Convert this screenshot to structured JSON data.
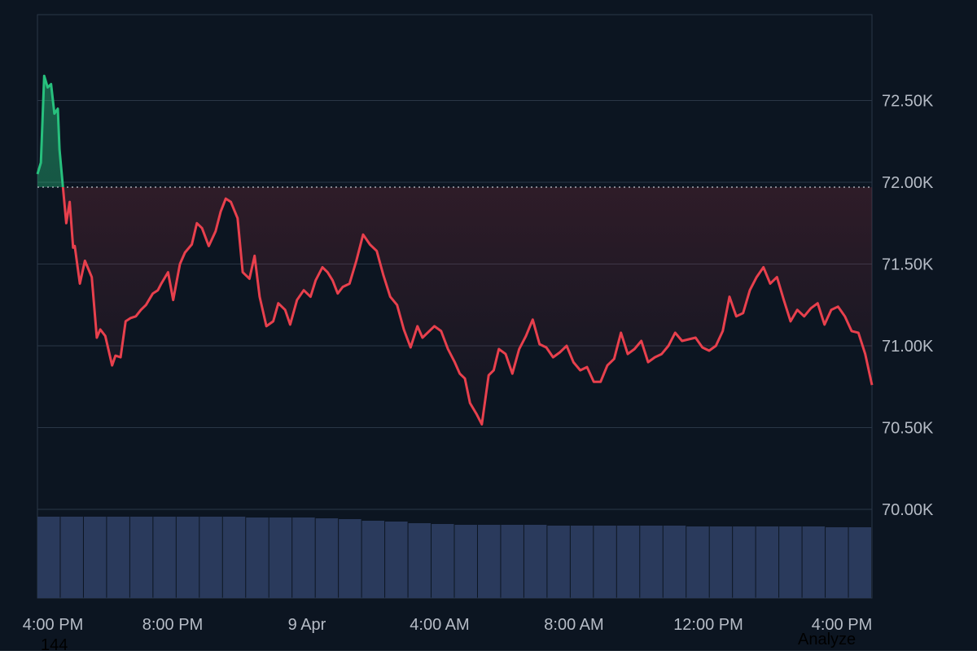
{
  "chart_data": {
    "type": "area",
    "title": "",
    "xlabel": "",
    "ylabel": "",
    "x_ticks": [
      "4:00 PM",
      "8:00 PM",
      "9 Apr",
      "4:00 AM",
      "8:00 AM",
      "12:00 PM",
      "4:00 PM"
    ],
    "y_ticks": [
      "72.50K",
      "72.00K",
      "71.50K",
      "71.00K",
      "70.50K",
      "70.00K"
    ],
    "y_tick_values": [
      72500,
      72000,
      71500,
      71000,
      70500,
      70000
    ],
    "ylim": [
      69500,
      73000
    ],
    "baseline": 71970,
    "x_range_hours": [
      0,
      24.6
    ],
    "grid": true,
    "series": [
      {
        "x": [
          0,
          0.1,
          0.2,
          0.3,
          0.4,
          0.5,
          0.6,
          0.65,
          0.75,
          0.85,
          0.95,
          1.05,
          1.1,
          1.25,
          1.4,
          1.6,
          1.75,
          1.85,
          2.0,
          2.2,
          2.3,
          2.45,
          2.6,
          2.75,
          2.9,
          3.05,
          3.2,
          3.4,
          3.55,
          3.65,
          3.85,
          4.0,
          4.2,
          4.35,
          4.55,
          4.7,
          4.85,
          5.05,
          5.25,
          5.4,
          5.55,
          5.7,
          5.9,
          6.05,
          6.25,
          6.4,
          6.55,
          6.75,
          6.95,
          7.1,
          7.3,
          7.45,
          7.65,
          7.85,
          8.05,
          8.2,
          8.4,
          8.55,
          8.7,
          8.85,
          9.0,
          9.2,
          9.4,
          9.6,
          9.8,
          10.0,
          10.2,
          10.4,
          10.6,
          10.8,
          11.0,
          11.2,
          11.35,
          11.5,
          11.7,
          11.9,
          12.1,
          12.3,
          12.45,
          12.6,
          12.75,
          12.95,
          13.1,
          13.3,
          13.45,
          13.6,
          13.8,
          14.0,
          14.2,
          14.4,
          14.6,
          14.8,
          15.0,
          15.2,
          15.4,
          15.6,
          15.8,
          16.0,
          16.2,
          16.4,
          16.6,
          16.8,
          17.0,
          17.2,
          17.4,
          17.6,
          17.8,
          18.0,
          18.2,
          18.4,
          18.6,
          18.8,
          19.0,
          19.2,
          19.4,
          19.6,
          19.8,
          20.0,
          20.2,
          20.4,
          20.6,
          20.8,
          21.0,
          21.2,
          21.4,
          21.6,
          21.8,
          22.0,
          22.2,
          22.4,
          22.6,
          22.8,
          23.0,
          23.2,
          23.4,
          23.6,
          23.8,
          24.0,
          24.2,
          24.4,
          24.6
        ],
        "values": [
          72050,
          72120,
          72650,
          72580,
          72600,
          72420,
          72450,
          72200,
          71970,
          71750,
          71880,
          71600,
          71610,
          71380,
          71520,
          71420,
          71050,
          71100,
          71060,
          70880,
          70940,
          70930,
          71150,
          71170,
          71180,
          71220,
          71250,
          71320,
          71340,
          71380,
          71450,
          71280,
          71500,
          71570,
          71620,
          71750,
          71720,
          71610,
          71700,
          71820,
          71900,
          71880,
          71780,
          71450,
          71410,
          71550,
          71300,
          71120,
          71150,
          71260,
          71220,
          71130,
          71280,
          71340,
          71300,
          71400,
          71480,
          71450,
          71400,
          71320,
          71360,
          71380,
          71520,
          71680,
          71620,
          71580,
          71430,
          71300,
          71250,
          71100,
          70990,
          71120,
          71050,
          71080,
          71120,
          71090,
          70980,
          70900,
          70830,
          70800,
          70650,
          70580,
          70520,
          70820,
          70850,
          70980,
          70950,
          70830,
          70980,
          71060,
          71160,
          71010,
          70990,
          70930,
          70960,
          71000,
          70900,
          70850,
          70870,
          70780,
          70780,
          70880,
          70920,
          71080,
          70950,
          70980,
          71030,
          70900,
          70930,
          70950,
          71000,
          71080,
          71030,
          71040,
          71050,
          70990,
          70970,
          71000,
          71090,
          71300,
          71180,
          71200,
          71340,
          71420,
          71480,
          71380,
          71420,
          71280,
          71150,
          71220,
          71180,
          71230,
          71260,
          71130,
          71220,
          71240,
          71180,
          71090,
          71080,
          70950,
          70760
        ]
      }
    ],
    "volume": [
      1.0,
      1.0,
      1.0,
      1.0,
      1.0,
      1.0,
      1.0,
      1.0,
      1.0,
      0.99,
      0.99,
      0.99,
      0.98,
      0.97,
      0.95,
      0.94,
      0.92,
      0.91,
      0.9,
      0.9,
      0.9,
      0.9,
      0.89,
      0.89,
      0.89,
      0.89,
      0.89,
      0.89,
      0.88,
      0.88,
      0.88,
      0.88,
      0.88,
      0.88,
      0.87,
      0.87
    ],
    "colors": {
      "background": "#0c1521",
      "up_line": "#27c07d",
      "down_line": "#e8404d",
      "baseline": "#c0c6ce",
      "grid": "#2a3646",
      "volume": "#2a3a5c"
    }
  },
  "corner_value": "144",
  "analyze_label": "Analyze"
}
